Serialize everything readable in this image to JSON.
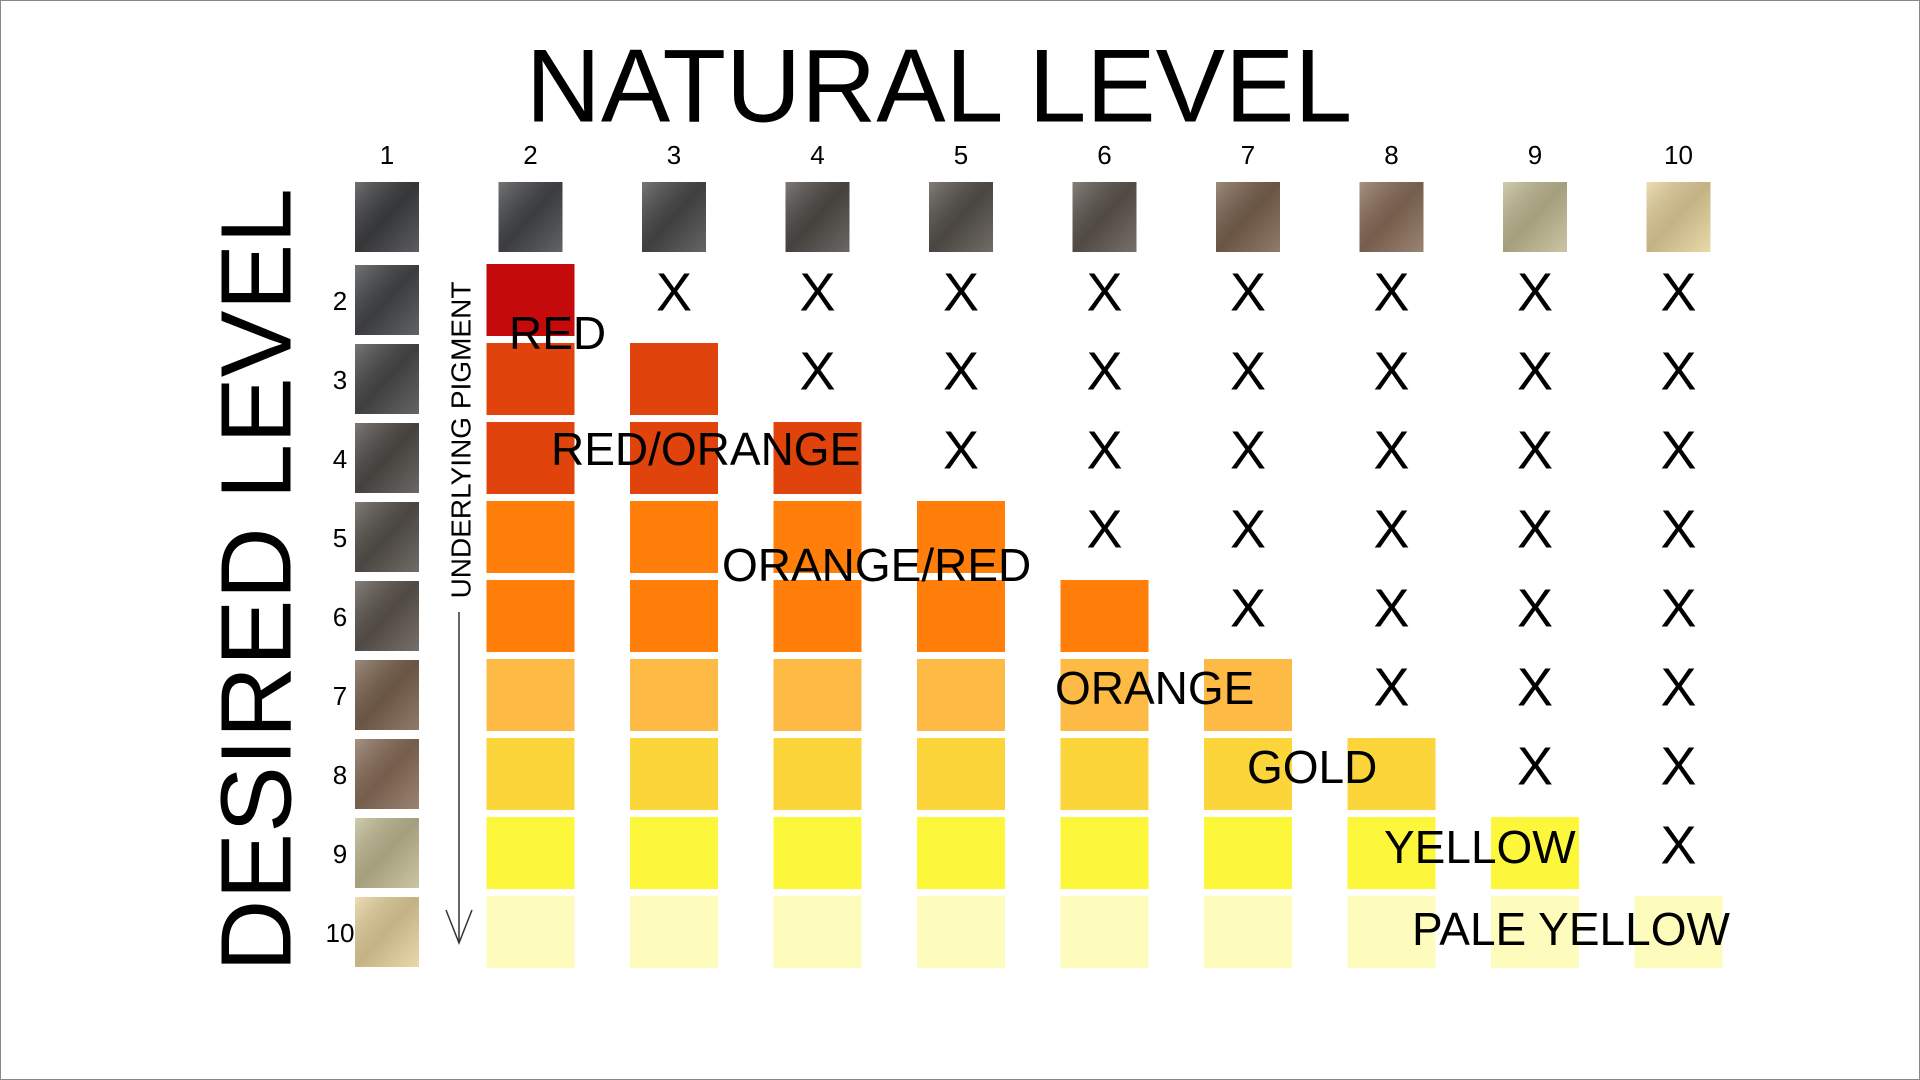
{
  "title": "NATURAL LEVEL",
  "natural_levels": [
    "1",
    "2",
    "3",
    "4",
    "5",
    "6",
    "7",
    "8",
    "9",
    "10"
  ],
  "desired_title": "DESIRED LEVEL",
  "pigment_title": "UNDERLYING PIGMENT",
  "rows": [
    {
      "level": "2",
      "marks": [
        "X",
        "X",
        "X",
        "X",
        "X",
        "X",
        "X",
        "X"
      ]
    },
    {
      "level": "3",
      "marks": [
        "X",
        "X",
        "X",
        "X",
        "X",
        "X",
        "X"
      ]
    },
    {
      "level": "4",
      "marks": [
        "X",
        "X",
        "X",
        "X",
        "X",
        "X"
      ]
    },
    {
      "level": "5",
      "marks": [
        "X",
        "X",
        "X",
        "X",
        "X"
      ]
    },
    {
      "level": "6",
      "marks": [
        "X",
        "X",
        "X",
        "X"
      ]
    },
    {
      "level": "7",
      "marks": [
        "X",
        "X",
        "X"
      ]
    },
    {
      "level": "8",
      "marks": [
        "X",
        "X"
      ]
    },
    {
      "level": "9",
      "marks": [
        "X"
      ]
    },
    {
      "level": "10",
      "marks": []
    }
  ],
  "pigments": [
    "RED",
    "RED/ORANGE",
    "ORANGE/RED",
    "ORANGE",
    "GOLD",
    "YELLOW",
    "PALE YELLOW"
  ]
}
